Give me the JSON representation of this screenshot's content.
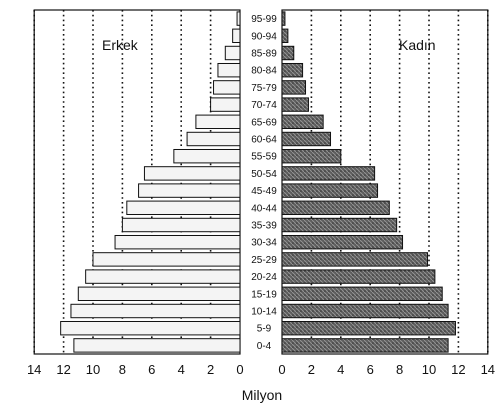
{
  "chart_data": {
    "type": "bar",
    "subtype": "population-pyramid",
    "xlabel": "Milyon",
    "left_label": "Erkek",
    "right_label": "Kadın",
    "xlim": [
      0,
      14
    ],
    "xticks_left": [
      "14",
      "12",
      "10",
      "8",
      "6",
      "4",
      "2",
      "0"
    ],
    "xticks_right": [
      "0",
      "2",
      "4",
      "6",
      "8",
      "10",
      "12",
      "14"
    ],
    "grid": "vertical dotted",
    "categories": [
      "0-4",
      "5-9",
      "10-14",
      "15-19",
      "20-24",
      "25-29",
      "30-34",
      "35-39",
      "40-44",
      "45-49",
      "50-54",
      "55-59",
      "60-64",
      "65-69",
      "70-74",
      "75-79",
      "80-84",
      "85-89",
      "90-94",
      "95-99"
    ],
    "series": [
      {
        "name": "Erkek",
        "values": [
          11.3,
          12.2,
          11.5,
          11.0,
          10.5,
          10.0,
          8.5,
          8.0,
          7.7,
          6.9,
          6.5,
          4.5,
          3.6,
          3.0,
          2.0,
          1.8,
          1.5,
          1.0,
          0.5,
          0.2
        ]
      },
      {
        "name": "Kadın",
        "values": [
          11.3,
          11.8,
          11.3,
          10.9,
          10.4,
          9.9,
          8.2,
          7.8,
          7.3,
          6.5,
          6.3,
          4.0,
          3.3,
          2.8,
          1.8,
          1.6,
          1.4,
          0.8,
          0.4,
          0.2
        ]
      }
    ],
    "colors": {
      "male_fill": "#f4f4f4",
      "female_fill": "#6b6b6b",
      "outline": "#111111",
      "grid": "#111111"
    }
  }
}
